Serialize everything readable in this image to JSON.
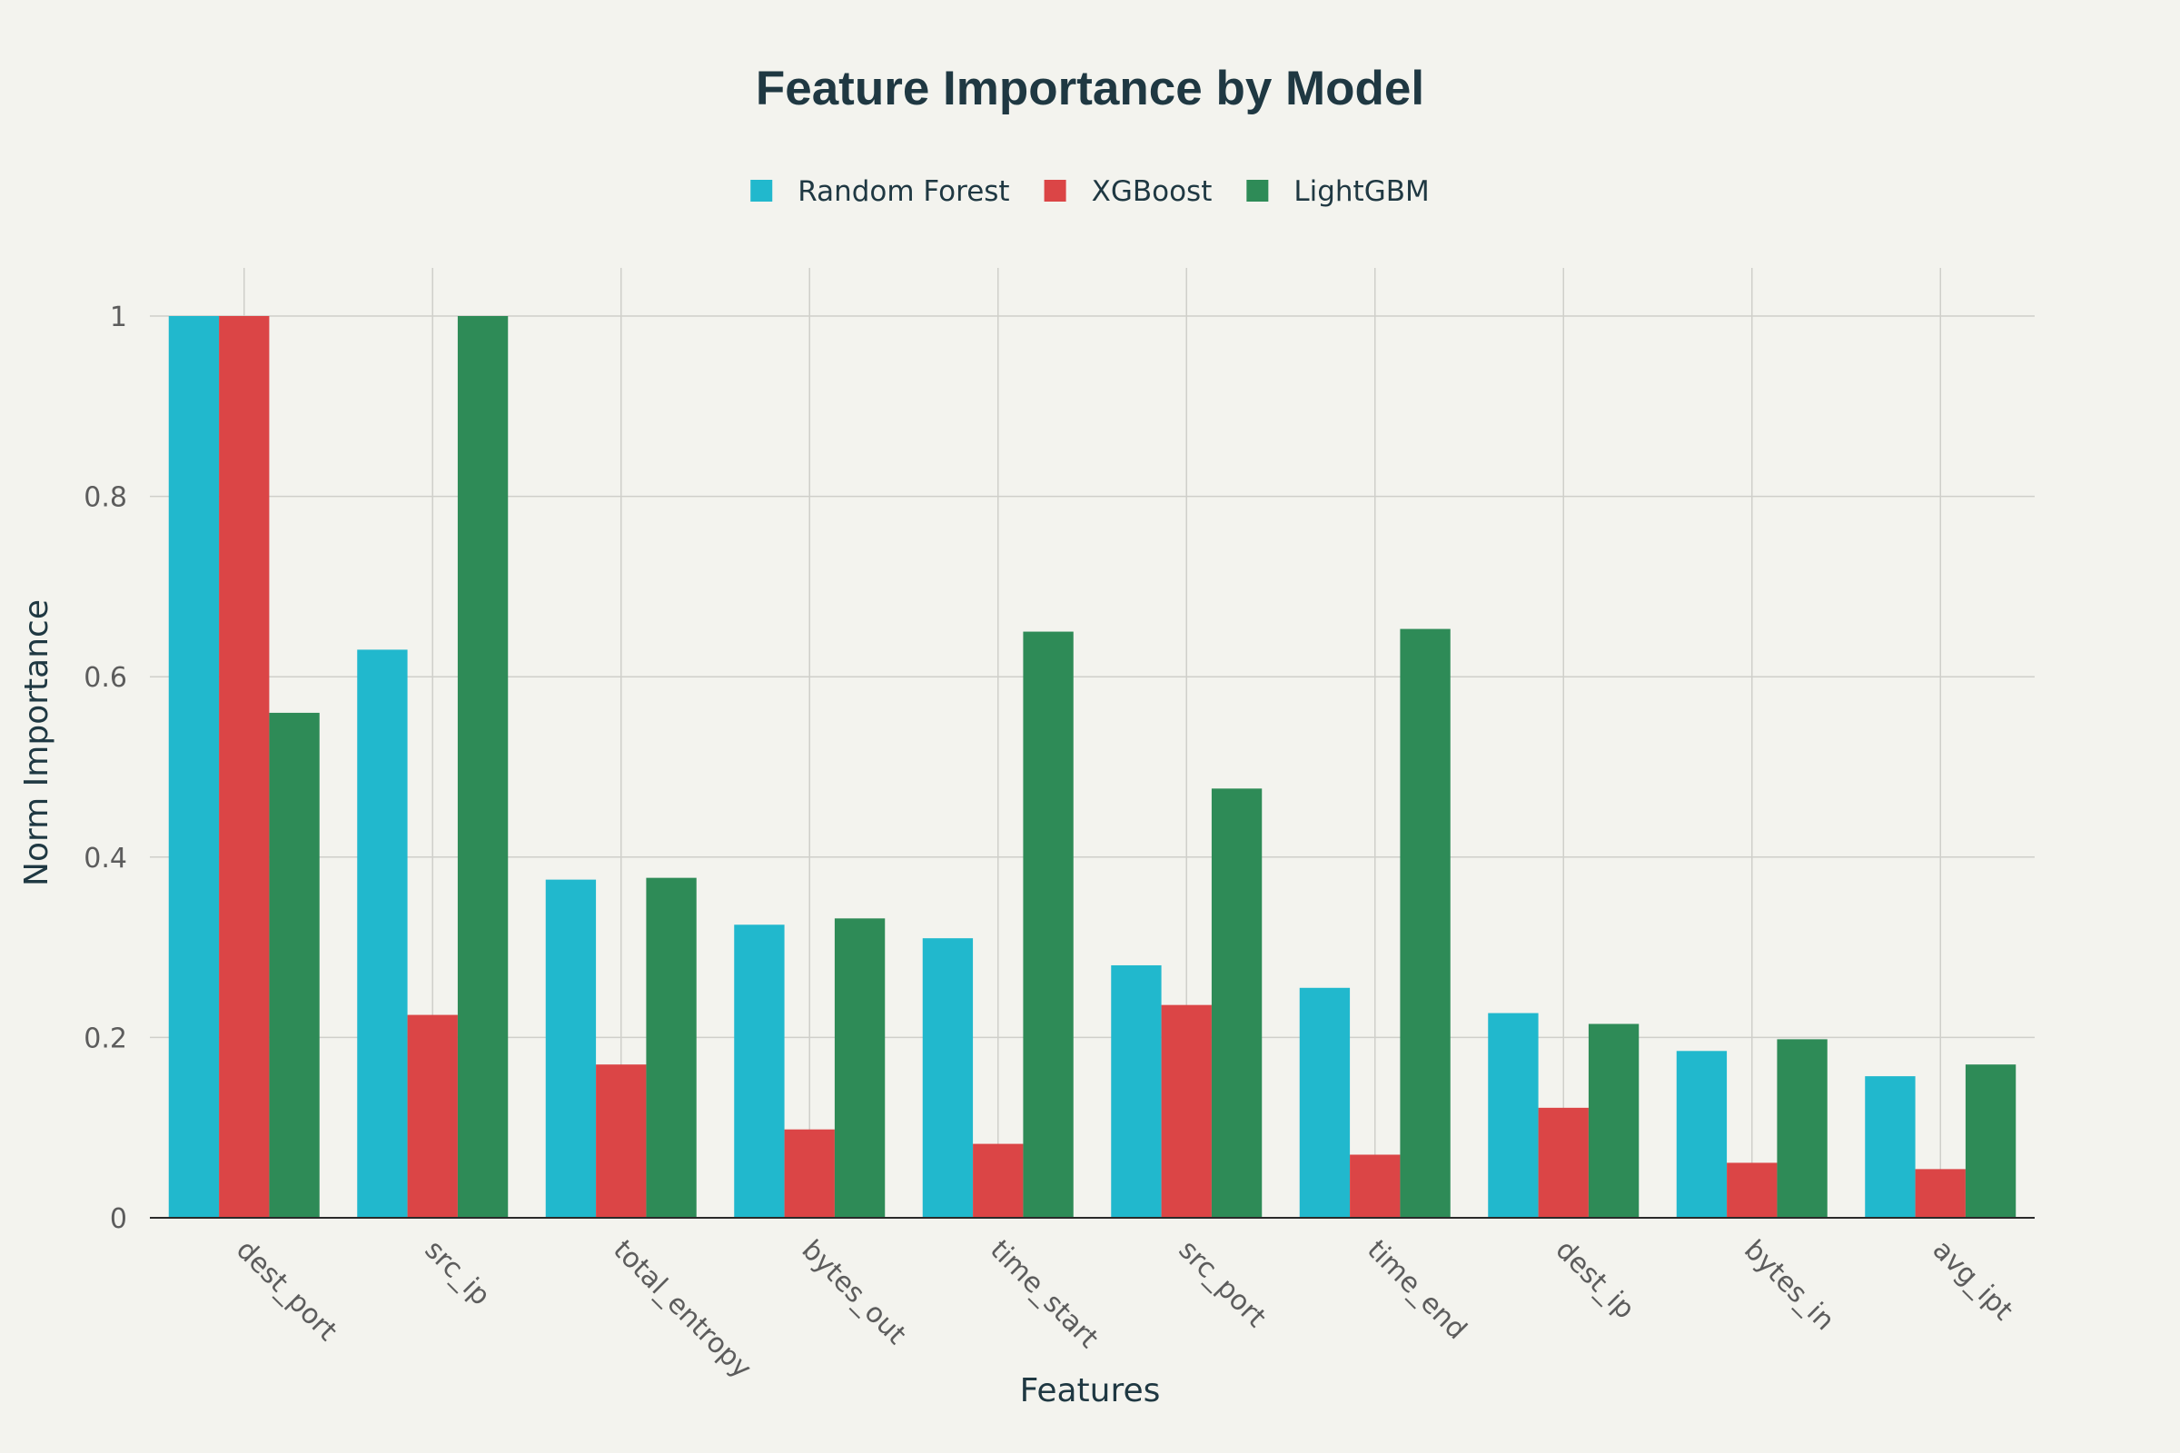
{
  "chart_data": {
    "type": "bar",
    "title": "Feature Importance by Model",
    "xlabel": "Features",
    "ylabel": "Norm Importance",
    "categories": [
      "dest_port",
      "src_ip",
      "total_entropy",
      "bytes_out",
      "time_start",
      "src_port",
      "time_end",
      "dest_ip",
      "bytes_in",
      "avg_ipt"
    ],
    "series": [
      {
        "name": "Random Forest",
        "color": "#21b8cd",
        "values": [
          1.0,
          0.63,
          0.375,
          0.325,
          0.31,
          0.28,
          0.255,
          0.227,
          0.185,
          0.157
        ]
      },
      {
        "name": "XGBoost",
        "color": "#db4546",
        "values": [
          1.0,
          0.225,
          0.17,
          0.098,
          0.082,
          0.236,
          0.07,
          0.122,
          0.061,
          0.054
        ]
      },
      {
        "name": "LightGBM",
        "color": "#2e8b57",
        "values": [
          0.56,
          1.0,
          0.377,
          0.332,
          0.65,
          0.476,
          0.653,
          0.215,
          0.198,
          0.17
        ]
      }
    ],
    "ylim": [
      0,
      1
    ],
    "yticks": [
      0,
      0.2,
      0.4,
      0.6,
      0.8,
      1
    ],
    "ytick_labels": [
      "0",
      "0.2",
      "0.4",
      "0.6",
      "0.8",
      "1"
    ],
    "grid": true,
    "legend_position": "top-center"
  }
}
